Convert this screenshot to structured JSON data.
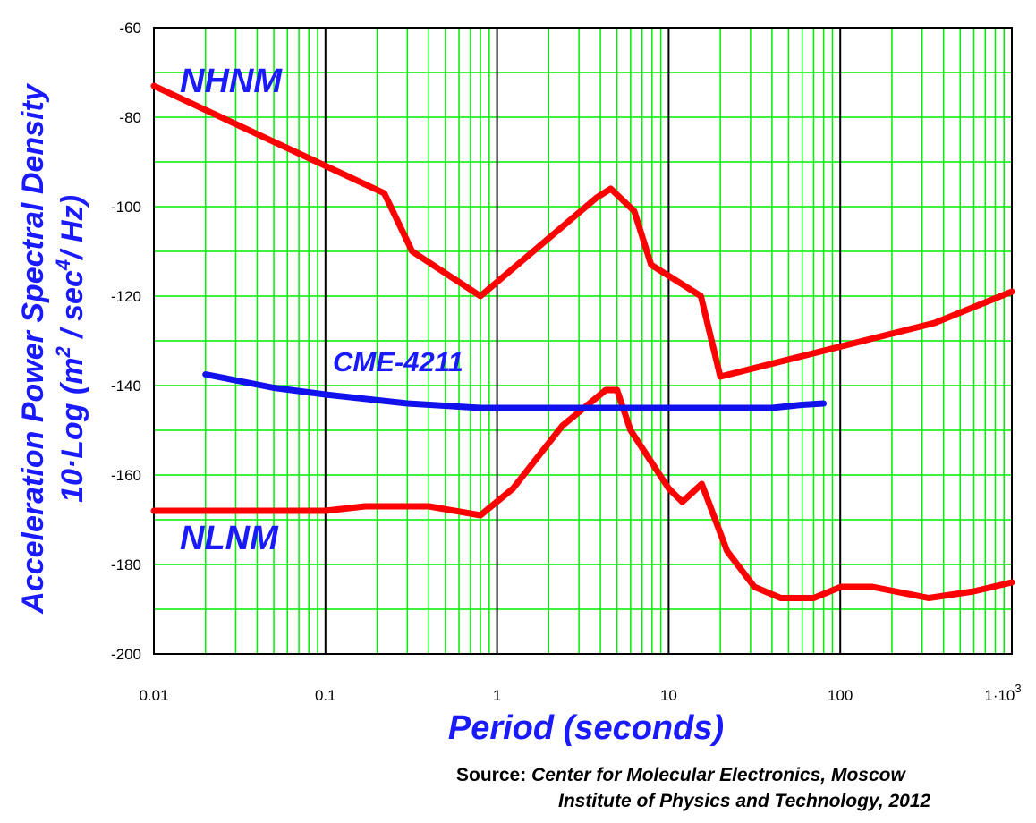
{
  "chart_data": {
    "type": "line",
    "x_scale": "log",
    "xlim": [
      0.01,
      1000
    ],
    "ylim": [
      -200,
      -60
    ],
    "x_ticks": [
      0.01,
      0.1,
      1,
      10,
      100,
      1000
    ],
    "x_tick_labels": [
      "0.01",
      "0.1",
      "1",
      "10",
      "100",
      "1·10"
    ],
    "x_tick_superscript": "3",
    "y_ticks": [
      -60,
      -80,
      -100,
      -120,
      -140,
      -160,
      -180,
      -200
    ],
    "y_tick_labels": [
      "-60",
      "-80",
      "-100",
      "-120",
      "-140",
      "-160",
      "-180",
      "-200"
    ],
    "ylabel_line1": "Acceleration Power Spectral Density",
    "ylabel_line2": {
      "a": "10·Log (m",
      "sup1": "2",
      "b": " / sec",
      "sup2": "4",
      "c": "/ Hz)"
    },
    "xlabel": "Period (seconds)",
    "grid": true,
    "grid_color": "#00ee00",
    "major_grid_color": "#000000",
    "series": [
      {
        "name": "NHNM",
        "color": "#ff0000",
        "x": [
          0.01,
          0.22,
          0.32,
          0.8,
          3.8,
          4.6,
          6.3,
          7.9,
          15.4,
          20,
          354.8,
          1000
        ],
        "y": [
          -73,
          -97,
          -110,
          -120,
          -98,
          -96,
          -101,
          -113,
          -120,
          -138,
          -126,
          -119
        ]
      },
      {
        "name": "NLNM",
        "color": "#ff0000",
        "x": [
          0.01,
          0.1,
          0.17,
          0.4,
          0.8,
          1.24,
          2.4,
          4.3,
          5.0,
          6.0,
          10.0,
          12.0,
          15.6,
          21.9,
          31.6,
          45,
          70,
          101,
          154,
          328,
          600,
          1000
        ],
        "y": [
          -168,
          -168,
          -167,
          -167,
          -169,
          -163,
          -149,
          -141,
          -141,
          -150,
          -163,
          -166,
          -162,
          -177,
          -185,
          -187.5,
          -187.5,
          -185,
          -185,
          -187.5,
          -186,
          -184
        ]
      },
      {
        "name": "CME-4211",
        "color": "#1111ee",
        "x": [
          0.02,
          0.05,
          0.1,
          0.3,
          0.8,
          2,
          10,
          40,
          60,
          80
        ],
        "y": [
          -137.5,
          -140.5,
          -142,
          -144,
          -145,
          -145,
          -145,
          -145,
          -144.3,
          -144
        ]
      }
    ]
  },
  "series_labels": {
    "nhnm": "NHNM",
    "nlnm": "NLNM",
    "cme": "CME-4211"
  },
  "source": {
    "prefix": "Source:",
    "line1": "Center for Molecular Electronics,  Moscow",
    "line2": "Institute of Physics and Technology, 2012"
  }
}
